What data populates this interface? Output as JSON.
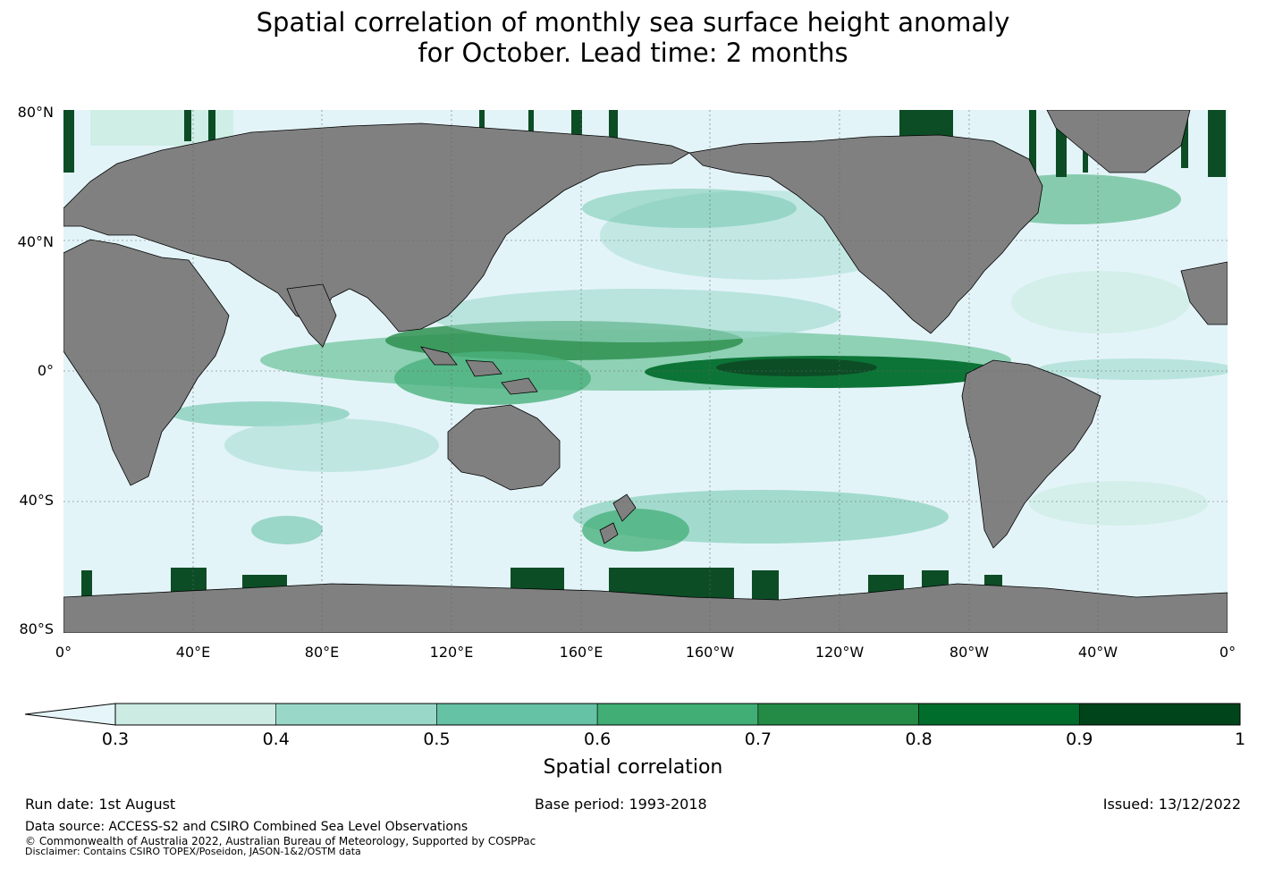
{
  "title": {
    "line1": "Spatial correlation of monthly sea surface height anomaly",
    "line2": "for October. Lead time: 2 months"
  },
  "map": {
    "lat_labels": [
      "80°N",
      "40°N",
      "0°",
      "40°S",
      "80°S"
    ],
    "lon_labels": [
      "0°",
      "40°E",
      "80°E",
      "120°E",
      "160°E",
      "160°W",
      "120°W",
      "80°W",
      "40°W",
      "0°"
    ],
    "colors": {
      "ocean_low": "#e3f4f9",
      "land": "#808080",
      "coast": "#000000"
    }
  },
  "colorbar": {
    "ticks": [
      "0.3",
      "0.4",
      "0.5",
      "0.6",
      "0.7",
      "0.8",
      "0.9",
      "1"
    ],
    "colors": [
      "#ccece3",
      "#99d8c9",
      "#66c2a4",
      "#41ae76",
      "#238b45",
      "#006d2c",
      "#00441b"
    ],
    "extend_color": "#e5f5f9",
    "label": "Spatial correlation"
  },
  "footer": {
    "run_date": "Run date: 1st August",
    "base_period": "Base period: 1993-2018",
    "issued": "Issued: 13/12/2022",
    "data_source": "Data source: ACCESS-S2 and CSIRO Combined Sea Level Observations",
    "copyright": "© Commonwealth of Australia 2022, Australian Bureau of Meteorology, Supported by COSPPac",
    "disclaimer": "Disclaimer: Contains CSIRO TOPEX/Poseidon, JASON-1&2/OSTM data"
  }
}
